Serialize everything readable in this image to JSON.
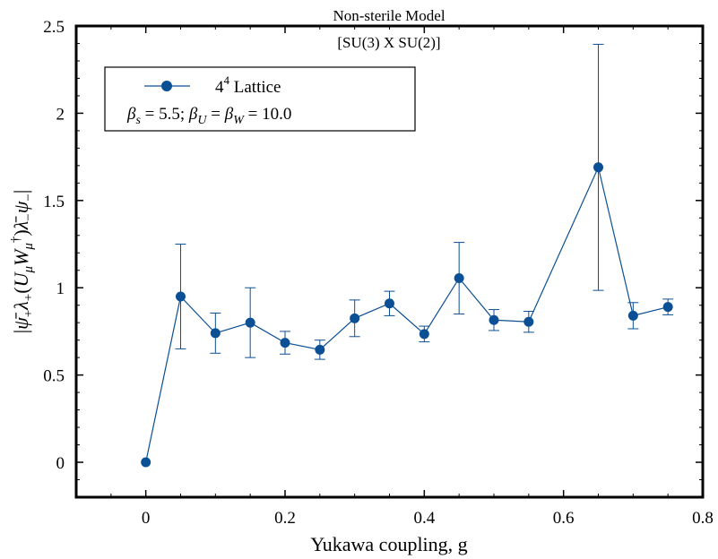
{
  "chart_data": {
    "type": "scatter",
    "title": "Non-sterile Model",
    "subtitle": "[SU(3) X SU(2)]",
    "xlabel": "Yukawa coupling, g",
    "ylabel": "|ψ̄₊λ₊(U_μW_μ†)λ̄₋ψ₋|",
    "xlim": [
      -0.1,
      0.8
    ],
    "ylim": [
      -0.2,
      2.5
    ],
    "x_ticks": [
      "0",
      "0.2",
      "0.4",
      "0.6",
      "0.8"
    ],
    "x_tick_values": [
      0,
      0.2,
      0.4,
      0.6,
      0.8
    ],
    "y_ticks": [
      "0",
      "0.5",
      "1",
      "1.5",
      "2",
      "2.5"
    ],
    "y_tick_values": [
      0,
      0.5,
      1,
      1.5,
      2,
      2.5
    ],
    "grid": false,
    "legend_position": "top-left",
    "series": [
      {
        "name": "4⁴ Lattice",
        "color": "#0b4f94",
        "marker": "circle",
        "points": [
          {
            "x": 0.0,
            "y": 0.0,
            "err": 0.0
          },
          {
            "x": 0.05,
            "y": 0.95,
            "err": 0.3
          },
          {
            "x": 0.1,
            "y": 0.74,
            "err": 0.115
          },
          {
            "x": 0.15,
            "y": 0.8,
            "err": 0.2
          },
          {
            "x": 0.2,
            "y": 0.685,
            "err": 0.065
          },
          {
            "x": 0.25,
            "y": 0.645,
            "err": 0.055
          },
          {
            "x": 0.3,
            "y": 0.825,
            "err": 0.105
          },
          {
            "x": 0.35,
            "y": 0.91,
            "err": 0.07
          },
          {
            "x": 0.4,
            "y": 0.735,
            "err": 0.045
          },
          {
            "x": 0.45,
            "y": 1.055,
            "err": 0.205
          },
          {
            "x": 0.5,
            "y": 0.815,
            "err": 0.06
          },
          {
            "x": 0.55,
            "y": 0.805,
            "err": 0.06
          },
          {
            "x": 0.65,
            "y": 1.69,
            "err": 0.705
          },
          {
            "x": 0.7,
            "y": 0.84,
            "err": 0.075
          },
          {
            "x": 0.75,
            "y": 0.89,
            "err": 0.045
          }
        ]
      }
    ],
    "legend": {
      "entry_label": "4⁴ Lattice",
      "params_text": "βs = 5.5;  βU = βW = 10.0"
    }
  }
}
